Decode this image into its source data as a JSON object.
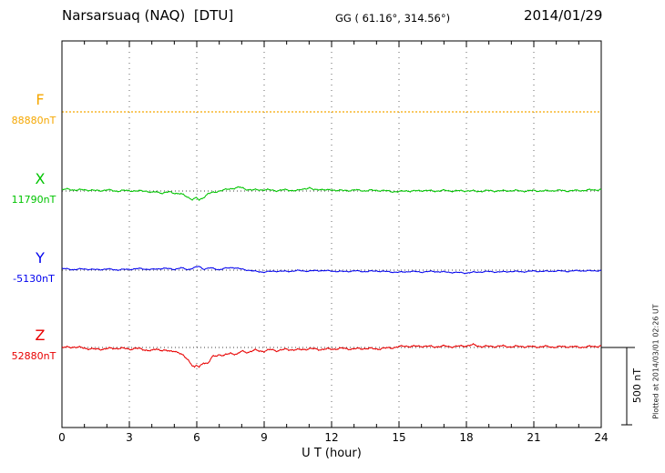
{
  "header": {
    "station": "Narsarsuaq (NAQ)  [DTU]",
    "coords": "GG ( 61.16°, 314.56°)",
    "date": "2014/01/29"
  },
  "xaxis": {
    "label": "U T (hour)",
    "ticks": [
      0,
      3,
      6,
      9,
      12,
      15,
      18,
      21,
      24
    ]
  },
  "scalebar": {
    "label": "500 nT",
    "nT": 500
  },
  "footer_note": "Plotted at 2014/03/01 02:26 UT",
  "channels": [
    {
      "name": "F",
      "value_label": "88880nT",
      "color": "#f5a700"
    },
    {
      "name": "X",
      "value_label": "11790nT",
      "color": "#00c400"
    },
    {
      "name": "Y",
      "value_label": "-5130nT",
      "color": "#0000ee"
    },
    {
      "name": "Z",
      "value_label": "52880nT",
      "color": "#e80000"
    }
  ],
  "chart_data": {
    "type": "line",
    "title": "Narsarsuaq (NAQ) [DTU] magnetogram 2014/01/29",
    "xlabel": "U T (hour)",
    "xlim": [
      0,
      24
    ],
    "xticks": [
      0,
      3,
      6,
      9,
      12,
      15,
      18,
      21,
      24
    ],
    "grid": "vertical-dotted",
    "scale_bar_nT": 500,
    "series": [
      {
        "name": "F",
        "baseline_nT": 88880,
        "color": "#f5a700",
        "style": "dotted",
        "noise_nT": 0,
        "points": [
          [
            0,
            0
          ],
          [
            24,
            0
          ]
        ]
      },
      {
        "name": "X",
        "baseline_nT": 11790,
        "color": "#00c400",
        "style": "solid",
        "noise_nT": 7,
        "points": [
          [
            0,
            8
          ],
          [
            0.3,
            12
          ],
          [
            0.7,
            5
          ],
          [
            1,
            9
          ],
          [
            1.5,
            2
          ],
          [
            2,
            6
          ],
          [
            2.5,
            0
          ],
          [
            3,
            4
          ],
          [
            3.3,
            -2
          ],
          [
            3.7,
            3
          ],
          [
            4,
            -12
          ],
          [
            4.2,
            -4
          ],
          [
            4.5,
            -14
          ],
          [
            4.8,
            -6
          ],
          [
            5,
            -12
          ],
          [
            5.3,
            -20
          ],
          [
            5.6,
            -38
          ],
          [
            5.8,
            -55
          ],
          [
            6,
            -45
          ],
          [
            6.1,
            -60
          ],
          [
            6.3,
            -40
          ],
          [
            6.5,
            -18
          ],
          [
            6.8,
            -8
          ],
          [
            7,
            2
          ],
          [
            7.3,
            8
          ],
          [
            7.6,
            18
          ],
          [
            7.9,
            24
          ],
          [
            8.2,
            12
          ],
          [
            8.5,
            6
          ],
          [
            9,
            9
          ],
          [
            9.5,
            3
          ],
          [
            10,
            7
          ],
          [
            10.5,
            2
          ],
          [
            10.8,
            16
          ],
          [
            11,
            21
          ],
          [
            11.2,
            6
          ],
          [
            11.5,
            13
          ],
          [
            11.8,
            4
          ],
          [
            12,
            8
          ],
          [
            12.5,
            2
          ],
          [
            13,
            6
          ],
          [
            13.5,
            2
          ],
          [
            14,
            5
          ],
          [
            14.5,
            0
          ],
          [
            15,
            -6
          ],
          [
            15.3,
            3
          ],
          [
            15.6,
            -2
          ],
          [
            16,
            4
          ],
          [
            16.5,
            0
          ],
          [
            17,
            3
          ],
          [
            17.5,
            0
          ],
          [
            18,
            2
          ],
          [
            18.5,
            -2
          ],
          [
            19,
            2
          ],
          [
            19.5,
            0
          ],
          [
            20,
            3
          ],
          [
            20.5,
            0
          ],
          [
            21,
            2
          ],
          [
            21.5,
            0
          ],
          [
            22,
            4
          ],
          [
            22.5,
            1
          ],
          [
            23,
            3
          ],
          [
            23.5,
            6
          ],
          [
            24,
            10
          ]
        ]
      },
      {
        "name": "Y",
        "baseline_nT": -5130,
        "color": "#0000ee",
        "style": "solid",
        "noise_nT": 5,
        "points": [
          [
            0,
            10
          ],
          [
            0.5,
            4
          ],
          [
            1,
            8
          ],
          [
            1.5,
            3
          ],
          [
            2,
            7
          ],
          [
            2.5,
            2
          ],
          [
            3,
            6
          ],
          [
            3.5,
            10
          ],
          [
            4,
            4
          ],
          [
            4.5,
            12
          ],
          [
            5,
            6
          ],
          [
            5.3,
            14
          ],
          [
            5.6,
            4
          ],
          [
            5.9,
            16
          ],
          [
            6.1,
            24
          ],
          [
            6.3,
            8
          ],
          [
            6.6,
            14
          ],
          [
            7,
            4
          ],
          [
            7.3,
            12
          ],
          [
            7.6,
            18
          ],
          [
            8,
            6
          ],
          [
            8.3,
            0
          ],
          [
            8.6,
            -8
          ],
          [
            9,
            -12
          ],
          [
            9.5,
            -6
          ],
          [
            10,
            -8
          ],
          [
            10.5,
            -3
          ],
          [
            11,
            -6
          ],
          [
            11.5,
            -2
          ],
          [
            12,
            -6
          ],
          [
            12.5,
            -9
          ],
          [
            13,
            -5
          ],
          [
            13.5,
            -9
          ],
          [
            14,
            -5
          ],
          [
            14.5,
            -10
          ],
          [
            15,
            -14
          ],
          [
            15.5,
            -8
          ],
          [
            16,
            -12
          ],
          [
            16.5,
            -8
          ],
          [
            17,
            -12
          ],
          [
            17.5,
            -15
          ],
          [
            18,
            -18
          ],
          [
            18.5,
            -12
          ],
          [
            19,
            -9
          ],
          [
            19.5,
            -12
          ],
          [
            20,
            -8
          ],
          [
            20.5,
            -10
          ],
          [
            21,
            -6
          ],
          [
            21.5,
            -8
          ],
          [
            22,
            -5
          ],
          [
            22.5,
            -7
          ],
          [
            23,
            -3
          ],
          [
            23.5,
            -5
          ],
          [
            24,
            -2
          ]
        ]
      },
      {
        "name": "Z",
        "baseline_nT": 52880,
        "color": "#e80000",
        "style": "solid",
        "noise_nT": 8,
        "points": [
          [
            0,
            -2
          ],
          [
            0.5,
            4
          ],
          [
            1,
            -4
          ],
          [
            1.5,
            -12
          ],
          [
            2,
            -8
          ],
          [
            2.5,
            -4
          ],
          [
            3,
            -10
          ],
          [
            3.3,
            -6
          ],
          [
            3.6,
            -12
          ],
          [
            4,
            -22
          ],
          [
            4.2,
            -10
          ],
          [
            4.5,
            -18
          ],
          [
            4.8,
            -26
          ],
          [
            5,
            -20
          ],
          [
            5.2,
            -35
          ],
          [
            5.4,
            -55
          ],
          [
            5.6,
            -75
          ],
          [
            5.8,
            -115
          ],
          [
            5.9,
            -130
          ],
          [
            6,
            -118
          ],
          [
            6.1,
            -128
          ],
          [
            6.3,
            -95
          ],
          [
            6.5,
            -105
          ],
          [
            6.7,
            -60
          ],
          [
            7,
            -45
          ],
          [
            7.2,
            -55
          ],
          [
            7.5,
            -35
          ],
          [
            7.8,
            -45
          ],
          [
            8,
            -25
          ],
          [
            8.3,
            -30
          ],
          [
            8.6,
            -18
          ],
          [
            9,
            -24
          ],
          [
            9.3,
            -14
          ],
          [
            9.6,
            -20
          ],
          [
            10,
            -12
          ],
          [
            10.5,
            -16
          ],
          [
            11,
            -8
          ],
          [
            11.5,
            -12
          ],
          [
            12,
            -10
          ],
          [
            12.5,
            -6
          ],
          [
            13,
            -10
          ],
          [
            13.5,
            -6
          ],
          [
            14,
            -9
          ],
          [
            14.5,
            -4
          ],
          [
            15,
            4
          ],
          [
            15.3,
            10
          ],
          [
            15.6,
            6
          ],
          [
            16,
            9
          ],
          [
            16.5,
            5
          ],
          [
            17,
            8
          ],
          [
            17.5,
            5
          ],
          [
            18,
            12
          ],
          [
            18.3,
            16
          ],
          [
            18.6,
            8
          ],
          [
            19,
            6
          ],
          [
            19.5,
            9
          ],
          [
            20,
            5
          ],
          [
            20.5,
            7
          ],
          [
            21,
            4
          ],
          [
            21.5,
            6
          ],
          [
            22,
            3
          ],
          [
            22.5,
            6
          ],
          [
            23,
            2
          ],
          [
            23.5,
            5
          ],
          [
            24,
            10
          ]
        ]
      }
    ]
  }
}
